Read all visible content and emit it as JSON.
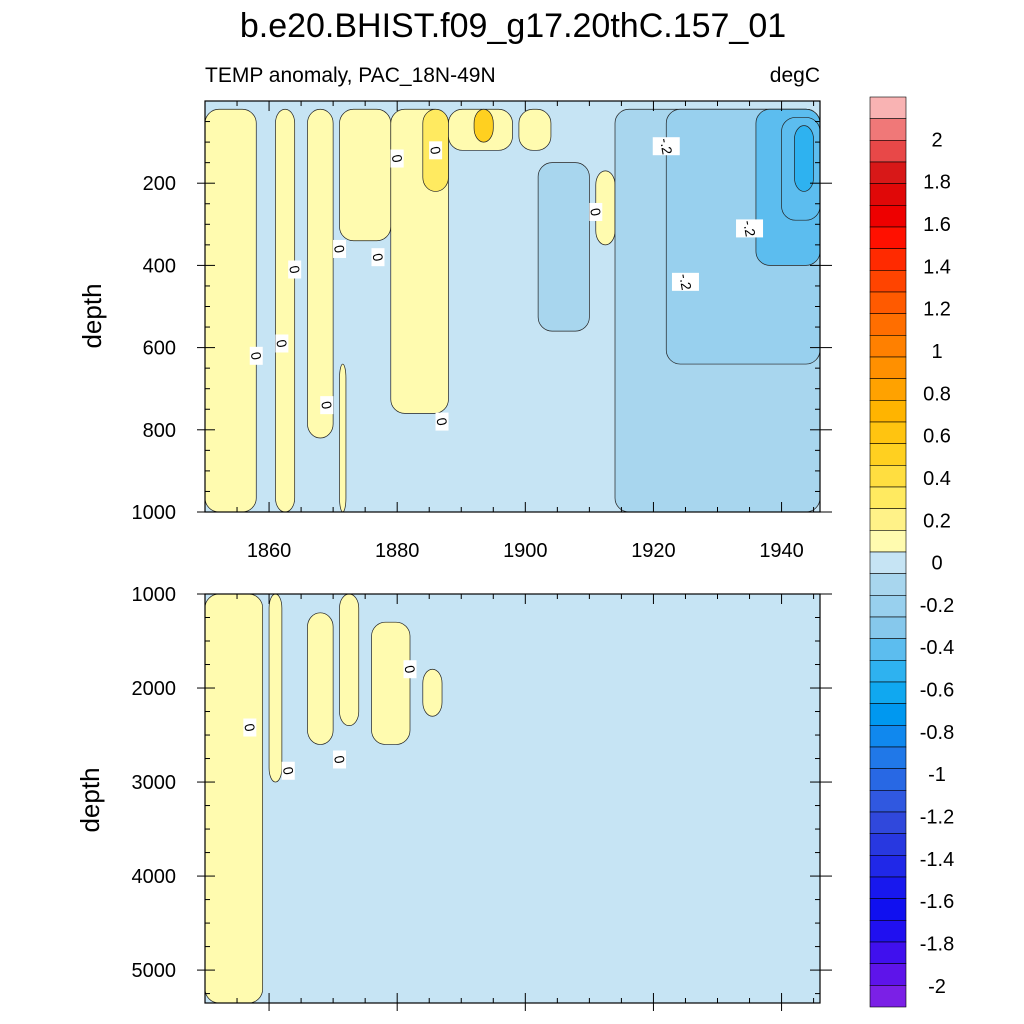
{
  "title": "b.e20.BHIST.f09_g17.20thC.157_01",
  "colors": {
    "pos_light": "#fffbaf",
    "pos_mid": "#ffef7a",
    "pos_strong": "#f5c64a",
    "neg_1": "#c6e4f4",
    "neg_2": "#a8d6ee",
    "neg_3": "#86c8ec",
    "neg_4": "#5cbdef",
    "neg_5": "#2eb2f0"
  },
  "chart_data": [
    {
      "type": "heatmap",
      "name": "upper",
      "subtitle_left": "TEMP anomaly, PAC_18N-49N",
      "subtitle_right": "degC",
      "ylabel": "depth",
      "xlim": [
        1850,
        1946
      ],
      "ylim": [
        0,
        1000
      ],
      "yreversed": true,
      "xticks": [
        1860,
        1880,
        1900,
        1920,
        1940
      ],
      "xtick_labels": [
        "1860",
        "1880",
        "1900",
        "1920",
        "1940"
      ],
      "yticks": [
        200,
        400,
        600,
        800,
        1000
      ],
      "ytick_labels": [
        "200",
        "400",
        "600",
        "800",
        "1000"
      ],
      "background_level": -0.1,
      "regions": [
        {
          "level": 0.1,
          "x0": 1850,
          "x1": 1858,
          "y0": 20,
          "y1": 1000
        },
        {
          "level": 0.1,
          "x0": 1861,
          "x1": 1864,
          "y0": 20,
          "y1": 1000
        },
        {
          "level": 0.1,
          "x0": 1866,
          "x1": 1870,
          "y0": 20,
          "y1": 820
        },
        {
          "level": 0.1,
          "x0": 1871,
          "x1": 1879,
          "y0": 20,
          "y1": 340
        },
        {
          "level": 0.1,
          "x0": 1871,
          "x1": 1872,
          "y0": 640,
          "y1": 1000
        },
        {
          "level": 0.1,
          "x0": 1879,
          "x1": 1888,
          "y0": 20,
          "y1": 760
        },
        {
          "level": 0.2,
          "x0": 1884,
          "x1": 1888,
          "y0": 20,
          "y1": 220
        },
        {
          "level": 0.1,
          "x0": 1888,
          "x1": 1898,
          "y0": 20,
          "y1": 120
        },
        {
          "level": 0.4,
          "x0": 1892,
          "x1": 1895,
          "y0": 20,
          "y1": 100
        },
        {
          "level": 0.1,
          "x0": 1899,
          "x1": 1904,
          "y0": 20,
          "y1": 120
        },
        {
          "level": 0.1,
          "x0": 1911,
          "x1": 1914,
          "y0": 170,
          "y1": 350
        },
        {
          "level": -0.2,
          "x0": 1902,
          "x1": 1910,
          "y0": 150,
          "y1": 560
        },
        {
          "level": -0.2,
          "x0": 1914,
          "x1": 1946,
          "y0": 20,
          "y1": 1000
        },
        {
          "level": -0.3,
          "x0": 1922,
          "x1": 1946,
          "y0": 20,
          "y1": 640
        },
        {
          "level": -0.4,
          "x0": 1936,
          "x1": 1946,
          "y0": 20,
          "y1": 400
        },
        {
          "level": -0.5,
          "x0": 1940,
          "x1": 1946,
          "y0": 40,
          "y1": 290
        },
        {
          "level": -0.6,
          "x0": 1942,
          "x1": 1945,
          "y0": 60,
          "y1": 220
        }
      ],
      "contour_labels": [
        {
          "text": "0",
          "x": 1858,
          "y": 620
        },
        {
          "text": "0",
          "x": 1862,
          "y": 590
        },
        {
          "text": "0",
          "x": 1864,
          "y": 410
        },
        {
          "text": "0",
          "x": 1869,
          "y": 740
        },
        {
          "text": "0",
          "x": 1871,
          "y": 360
        },
        {
          "text": "0",
          "x": 1877,
          "y": 380
        },
        {
          "text": "0",
          "x": 1880,
          "y": 140
        },
        {
          "text": "0",
          "x": 1886,
          "y": 120
        },
        {
          "text": "0",
          "x": 1887,
          "y": 780
        },
        {
          "text": "0",
          "x": 1911,
          "y": 270
        },
        {
          "text": "-.2",
          "x": 1922,
          "y": 110
        },
        {
          "text": "-.2",
          "x": 1925,
          "y": 440
        },
        {
          "text": "-.2",
          "x": 1935,
          "y": 310
        }
      ]
    },
    {
      "type": "heatmap",
      "name": "lower",
      "ylabel": "depth",
      "xlim": [
        1850,
        1946
      ],
      "ylim": [
        1000,
        5350
      ],
      "yreversed": true,
      "xticks": [
        1860,
        1880,
        1900,
        1920,
        1940
      ],
      "yticks": [
        1000,
        2000,
        3000,
        4000,
        5000
      ],
      "ytick_labels": [
        "1000",
        "2000",
        "3000",
        "4000",
        "5000"
      ],
      "background_level": -0.1,
      "regions": [
        {
          "level": 0.1,
          "x0": 1850,
          "x1": 1859,
          "y0": 1000,
          "y1": 5350
        },
        {
          "level": 0.1,
          "x0": 1860,
          "x1": 1862,
          "y0": 1000,
          "y1": 3000
        },
        {
          "level": 0.1,
          "x0": 1866,
          "x1": 1870,
          "y0": 1200,
          "y1": 2600
        },
        {
          "level": 0.1,
          "x0": 1871,
          "x1": 1874,
          "y0": 1000,
          "y1": 2400
        },
        {
          "level": 0.1,
          "x0": 1876,
          "x1": 1882,
          "y0": 1300,
          "y1": 2600
        },
        {
          "level": 0.1,
          "x0": 1884,
          "x1": 1887,
          "y0": 1800,
          "y1": 2300
        }
      ],
      "contour_labels": [
        {
          "text": "0",
          "x": 1857,
          "y": 2420
        },
        {
          "text": "0",
          "x": 1863,
          "y": 2880
        },
        {
          "text": "0",
          "x": 1871,
          "y": 2760
        },
        {
          "text": "0",
          "x": 1882,
          "y": 1800
        }
      ]
    }
  ],
  "colorbar": {
    "levels": [
      2.2,
      2.0,
      1.9,
      1.8,
      1.7,
      1.6,
      1.5,
      1.4,
      1.3,
      1.2,
      1.1,
      1.0,
      0.9,
      0.8,
      0.7,
      0.6,
      0.5,
      0.4,
      0.3,
      0.2,
      0.1,
      0.0,
      -0.1,
      -0.2,
      -0.3,
      -0.4,
      -0.5,
      -0.6,
      -0.7,
      -0.8,
      -0.9,
      -1.0,
      -1.1,
      -1.2,
      -1.3,
      -1.4,
      -1.5,
      -1.6,
      -1.7,
      -1.8,
      -1.9,
      -2.0,
      -2.1
    ],
    "colors": [
      "#f9b3b3",
      "#f07878",
      "#e84848",
      "#d81818",
      "#e00808",
      "#ee0000",
      "#ff1000",
      "#ff2a00",
      "#ff4400",
      "#ff5a00",
      "#ff6e00",
      "#ff8000",
      "#ff9000",
      "#ffa200",
      "#ffb400",
      "#ffc410",
      "#ffd020",
      "#ffde40",
      "#ffea60",
      "#fff288",
      "#fffbaf",
      "#c6e4f4",
      "#a8d6ee",
      "#98d0ee",
      "#86c8ec",
      "#5cbdef",
      "#2eb2f0",
      "#10a8f0",
      "#0098f0",
      "#1088ee",
      "#2078e8",
      "#2868e4",
      "#3058e0",
      "#3048dc",
      "#2838e0",
      "#2028e8",
      "#1818ee",
      "#1010f0",
      "#2010f0",
      "#4010ee",
      "#5e14ea",
      "#7b20e6"
    ],
    "labels": [
      "2",
      "1.8",
      "1.6",
      "1.4",
      "1.2",
      "1",
      "0.8",
      "0.6",
      "0.4",
      "0.2",
      "0",
      "-0.2",
      "-0.4",
      "-0.6",
      "-0.8",
      "-1",
      "-1.2",
      "-1.4",
      "-1.6",
      "-1.8",
      "-2"
    ],
    "label_positions": [
      2.0,
      1.8,
      1.6,
      1.4,
      1.2,
      1.0,
      0.8,
      0.6,
      0.4,
      0.2,
      0.0,
      -0.2,
      -0.4,
      -0.6,
      -0.8,
      -1.0,
      -1.2,
      -1.4,
      -1.6,
      -1.8,
      -2.0
    ]
  }
}
